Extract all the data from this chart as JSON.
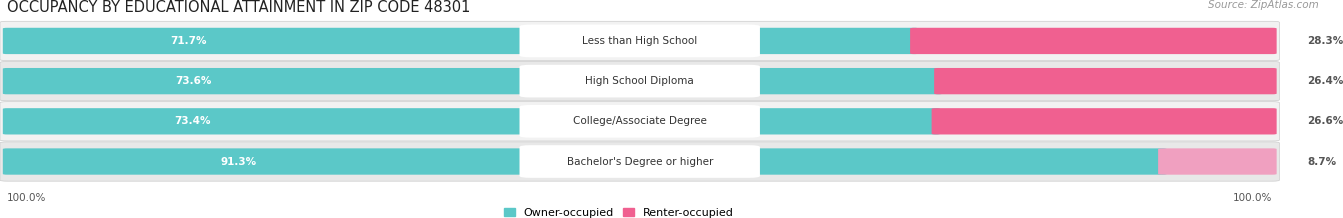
{
  "title": "OCCUPANCY BY EDUCATIONAL ATTAINMENT IN ZIP CODE 48301",
  "source": "Source: ZipAtlas.com",
  "categories": [
    "Less than High School",
    "High School Diploma",
    "College/Associate Degree",
    "Bachelor's Degree or higher"
  ],
  "owner_pct": [
    71.7,
    73.6,
    73.4,
    91.3
  ],
  "renter_pct": [
    28.3,
    26.4,
    26.6,
    8.7
  ],
  "owner_color": "#5BC8C8",
  "renter_color_normal": "#F06090",
  "renter_color_light": "#F0A0C0",
  "owner_color_dark": "#2AACAC",
  "row_bg_light": "#F2F2F2",
  "row_bg_dark": "#E8E8E8",
  "axis_label_left": "100.0%",
  "axis_label_right": "100.0%",
  "title_fontsize": 10.5,
  "source_fontsize": 7.5,
  "bar_label_fontsize": 7.5,
  "cat_label_fontsize": 7.5,
  "legend_fontsize": 8,
  "axis_tick_fontsize": 7.5
}
